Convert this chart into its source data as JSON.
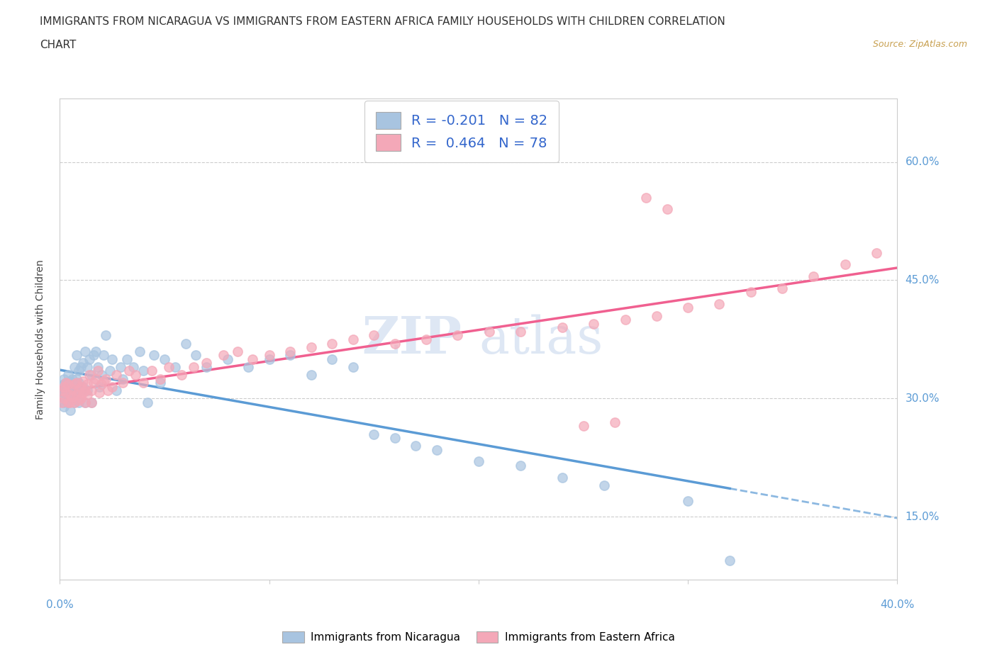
{
  "title_line1": "IMMIGRANTS FROM NICARAGUA VS IMMIGRANTS FROM EASTERN AFRICA FAMILY HOUSEHOLDS WITH CHILDREN CORRELATION",
  "title_line2": "CHART",
  "source": "Source: ZipAtlas.com",
  "ylabel": "Family Households with Children",
  "legend_nicaragua": "Immigrants from Nicaragua",
  "legend_eastern_africa": "Immigrants from Eastern Africa",
  "R_nicaragua": -0.201,
  "N_nicaragua": 82,
  "R_eastern_africa": 0.464,
  "N_eastern_africa": 78,
  "color_nicaragua": "#a8c4e0",
  "color_eastern_africa": "#f4a8b8",
  "line_color_nicaragua": "#5b9bd5",
  "line_color_eastern_africa": "#f06090",
  "nicaragua_x": [
    0.001,
    0.001,
    0.002,
    0.002,
    0.002,
    0.002,
    0.002,
    0.003,
    0.003,
    0.003,
    0.003,
    0.004,
    0.004,
    0.004,
    0.005,
    0.005,
    0.005,
    0.005,
    0.006,
    0.006,
    0.006,
    0.007,
    0.007,
    0.007,
    0.008,
    0.008,
    0.008,
    0.009,
    0.009,
    0.009,
    0.01,
    0.01,
    0.011,
    0.011,
    0.012,
    0.012,
    0.013,
    0.013,
    0.014,
    0.015,
    0.015,
    0.016,
    0.017,
    0.018,
    0.019,
    0.02,
    0.021,
    0.022,
    0.024,
    0.025,
    0.027,
    0.029,
    0.03,
    0.032,
    0.035,
    0.038,
    0.04,
    0.042,
    0.045,
    0.048,
    0.05,
    0.055,
    0.06,
    0.065,
    0.07,
    0.08,
    0.09,
    0.1,
    0.11,
    0.12,
    0.13,
    0.14,
    0.15,
    0.16,
    0.17,
    0.18,
    0.2,
    0.22,
    0.24,
    0.26,
    0.3,
    0.32
  ],
  "nicaragua_y": [
    0.31,
    0.305,
    0.318,
    0.295,
    0.325,
    0.308,
    0.29,
    0.315,
    0.3,
    0.32,
    0.298,
    0.33,
    0.308,
    0.295,
    0.322,
    0.318,
    0.305,
    0.285,
    0.315,
    0.325,
    0.3,
    0.34,
    0.31,
    0.295,
    0.355,
    0.325,
    0.305,
    0.32,
    0.335,
    0.295,
    0.34,
    0.31,
    0.345,
    0.315,
    0.36,
    0.295,
    0.34,
    0.31,
    0.35,
    0.33,
    0.295,
    0.355,
    0.36,
    0.34,
    0.315,
    0.33,
    0.355,
    0.38,
    0.335,
    0.35,
    0.31,
    0.34,
    0.325,
    0.35,
    0.34,
    0.36,
    0.335,
    0.295,
    0.355,
    0.32,
    0.35,
    0.34,
    0.37,
    0.355,
    0.34,
    0.35,
    0.34,
    0.35,
    0.355,
    0.33,
    0.35,
    0.34,
    0.255,
    0.25,
    0.24,
    0.235,
    0.22,
    0.215,
    0.2,
    0.19,
    0.17,
    0.095
  ],
  "eastern_africa_x": [
    0.001,
    0.001,
    0.002,
    0.002,
    0.003,
    0.003,
    0.004,
    0.004,
    0.005,
    0.005,
    0.006,
    0.006,
    0.007,
    0.007,
    0.008,
    0.008,
    0.009,
    0.009,
    0.01,
    0.01,
    0.011,
    0.011,
    0.012,
    0.012,
    0.013,
    0.013,
    0.014,
    0.015,
    0.015,
    0.016,
    0.017,
    0.018,
    0.019,
    0.02,
    0.021,
    0.022,
    0.023,
    0.025,
    0.027,
    0.03,
    0.033,
    0.036,
    0.04,
    0.044,
    0.048,
    0.052,
    0.058,
    0.064,
    0.07,
    0.078,
    0.085,
    0.092,
    0.1,
    0.11,
    0.12,
    0.13,
    0.14,
    0.15,
    0.16,
    0.175,
    0.19,
    0.205,
    0.22,
    0.24,
    0.255,
    0.27,
    0.285,
    0.3,
    0.315,
    0.33,
    0.345,
    0.36,
    0.375,
    0.39,
    0.28,
    0.29,
    0.25,
    0.265
  ],
  "eastern_africa_y": [
    0.295,
    0.31,
    0.3,
    0.315,
    0.308,
    0.32,
    0.295,
    0.318,
    0.305,
    0.295,
    0.312,
    0.302,
    0.318,
    0.295,
    0.32,
    0.305,
    0.31,
    0.298,
    0.315,
    0.3,
    0.308,
    0.322,
    0.31,
    0.295,
    0.318,
    0.305,
    0.33,
    0.31,
    0.295,
    0.32,
    0.325,
    0.335,
    0.308,
    0.318,
    0.322,
    0.325,
    0.31,
    0.315,
    0.33,
    0.32,
    0.335,
    0.33,
    0.32,
    0.335,
    0.325,
    0.34,
    0.33,
    0.34,
    0.345,
    0.355,
    0.36,
    0.35,
    0.355,
    0.36,
    0.365,
    0.37,
    0.375,
    0.38,
    0.37,
    0.375,
    0.38,
    0.385,
    0.385,
    0.39,
    0.395,
    0.4,
    0.405,
    0.415,
    0.42,
    0.435,
    0.44,
    0.455,
    0.47,
    0.485,
    0.555,
    0.54,
    0.265,
    0.27
  ],
  "xlim": [
    0.0,
    0.4
  ],
  "ylim": [
    0.07,
    0.68
  ],
  "xtick_left_label": "0.0%",
  "xtick_right_label": "40.0%",
  "yticks": [
    0.15,
    0.3,
    0.45,
    0.6
  ],
  "ytick_labels": [
    "15.0%",
    "30.0%",
    "45.0%",
    "60.0%"
  ],
  "background_color": "#ffffff",
  "watermark_zip": "ZIP",
  "watermark_atlas": "atlas",
  "title_fontsize": 11,
  "source_color": "#c8a050"
}
